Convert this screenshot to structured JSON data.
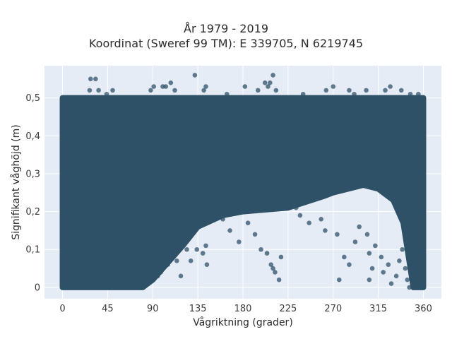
{
  "title_line1": "År 1979 - 2019",
  "title_line2": "Koordinat (Sweref 99 TM): E 339705, N 6219745",
  "chart_data": {
    "type": "scatter",
    "xlabel": "Vågriktning (grader)",
    "ylabel": "Signifikant våghöjd (m)",
    "xlim": [
      -18,
      378
    ],
    "ylim": [
      -0.03,
      0.585
    ],
    "x_ticks": [
      0,
      45,
      90,
      135,
      180,
      225,
      270,
      315,
      360
    ],
    "y_ticks": [
      0,
      0.1,
      0.2,
      0.3,
      0.4,
      0.5
    ],
    "y_tick_labels": [
      "0",
      "0,1",
      "0,2",
      "0,3",
      "0,4",
      "0,5"
    ],
    "grid": true,
    "colors": {
      "background": "#e5ecf6",
      "marker": "#2f5168",
      "grid": "#ffffff"
    },
    "dense_band": {
      "x_range": [
        0,
        360
      ],
      "y_max": 0.5,
      "lower_envelope": [
        [
          0,
          0.0
        ],
        [
          45,
          0.0
        ],
        [
          80,
          0.0
        ],
        [
          90,
          0.02
        ],
        [
          100,
          0.05
        ],
        [
          110,
          0.08
        ],
        [
          120,
          0.11
        ],
        [
          135,
          0.16
        ],
        [
          160,
          0.19
        ],
        [
          180,
          0.2
        ],
        [
          225,
          0.21
        ],
        [
          260,
          0.24
        ],
        [
          270,
          0.25
        ],
        [
          300,
          0.27
        ],
        [
          315,
          0.26
        ],
        [
          330,
          0.23
        ],
        [
          340,
          0.17
        ],
        [
          350,
          0.0
        ],
        [
          360,
          0.0
        ]
      ]
    },
    "points": [
      [
        28,
        0.55
      ],
      [
        33,
        0.55
      ],
      [
        27,
        0.52
      ],
      [
        36,
        0.52
      ],
      [
        44,
        0.51
      ],
      [
        50,
        0.52
      ],
      [
        88,
        0.52
      ],
      [
        91,
        0.53
      ],
      [
        100,
        0.53
      ],
      [
        103,
        0.53
      ],
      [
        108,
        0.54
      ],
      [
        112,
        0.52
      ],
      [
        132,
        0.56
      ],
      [
        141,
        0.52
      ],
      [
        143,
        0.53
      ],
      [
        164,
        0.51
      ],
      [
        182,
        0.53
      ],
      [
        195,
        0.52
      ],
      [
        202,
        0.54
      ],
      [
        205,
        0.53
      ],
      [
        207,
        0.54
      ],
      [
        210,
        0.56
      ],
      [
        213,
        0.52
      ],
      [
        240,
        0.51
      ],
      [
        263,
        0.52
      ],
      [
        270,
        0.53
      ],
      [
        286,
        0.52
      ],
      [
        291,
        0.51
      ],
      [
        303,
        0.52
      ],
      [
        322,
        0.52
      ],
      [
        327,
        0.53
      ],
      [
        338,
        0.52
      ],
      [
        347,
        0.51
      ],
      [
        355,
        0.51
      ],
      [
        56,
        0.25
      ],
      [
        72,
        0.18
      ],
      [
        90,
        0.2
      ],
      [
        96,
        0.18
      ],
      [
        80,
        0.16
      ],
      [
        103,
        0.16
      ],
      [
        112,
        0.15
      ],
      [
        118,
        0.12
      ],
      [
        124,
        0.1
      ],
      [
        134,
        0.1
      ],
      [
        140,
        0.09
      ],
      [
        143,
        0.11
      ],
      [
        128,
        0.07
      ],
      [
        144,
        0.06
      ],
      [
        114,
        0.07
      ],
      [
        160,
        0.18
      ],
      [
        167,
        0.15
      ],
      [
        176,
        0.12
      ],
      [
        185,
        0.17
      ],
      [
        192,
        0.14
      ],
      [
        198,
        0.1
      ],
      [
        204,
        0.09
      ],
      [
        208,
        0.06
      ],
      [
        212,
        0.04
      ],
      [
        210,
        0.05
      ],
      [
        218,
        0.08
      ],
      [
        216,
        0.02
      ],
      [
        233,
        0.21
      ],
      [
        237,
        0.19
      ],
      [
        246,
        0.17
      ],
      [
        258,
        0.18
      ],
      [
        262,
        0.15
      ],
      [
        274,
        0.14
      ],
      [
        276,
        0.02
      ],
      [
        281,
        0.08
      ],
      [
        286,
        0.06
      ],
      [
        292,
        0.12
      ],
      [
        296,
        0.16
      ],
      [
        304,
        0.14
      ],
      [
        306,
        0.09
      ],
      [
        306,
        0.02
      ],
      [
        309,
        0.05
      ],
      [
        312,
        0.11
      ],
      [
        318,
        0.08
      ],
      [
        320,
        0.04
      ],
      [
        325,
        0.06
      ],
      [
        328,
        0.01
      ],
      [
        333,
        0.03
      ],
      [
        336,
        0.07
      ],
      [
        339,
        0.1
      ],
      [
        342,
        0.05
      ],
      [
        344,
        0.02
      ],
      [
        346,
        0.0
      ],
      [
        349,
        0.03
      ],
      [
        352,
        0.0
      ],
      [
        357,
        0.02
      ],
      [
        359,
        0.0
      ],
      [
        2,
        0.0
      ],
      [
        5,
        0.0
      ],
      [
        8,
        0.0
      ],
      [
        25,
        0.0
      ],
      [
        37,
        0.0
      ],
      [
        41,
        0.0
      ],
      [
        95,
        0.03
      ],
      [
        98,
        0.04
      ],
      [
        105,
        0.06
      ],
      [
        118,
        0.03
      ]
    ]
  }
}
